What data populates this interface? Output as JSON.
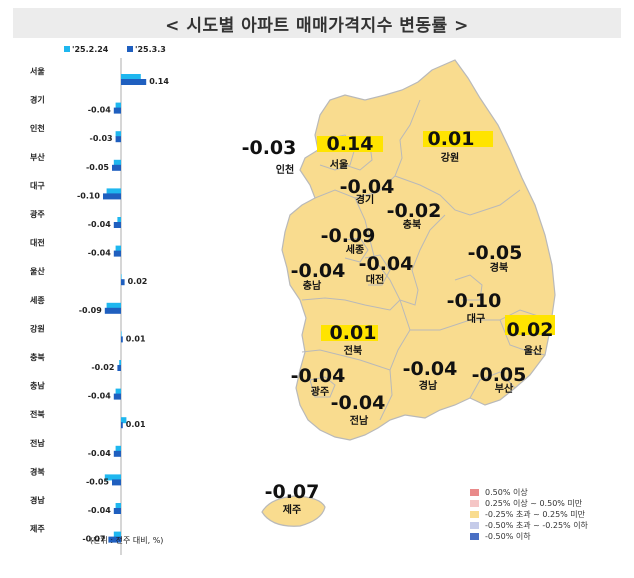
{
  "title": "< 시도별 아파트 매매가격지수 변동률 >",
  "unit_note": "(단위 : 전주 대비, %)",
  "colors": {
    "series_prev": "#1fb7ef",
    "series_curr": "#1f5fbf",
    "map_fill": "#f9dc8f",
    "map_stroke": "#b9b9b9",
    "highlight": "#ffe400"
  },
  "chart_data": {
    "type": "bar",
    "orientation": "horizontal",
    "categories": [
      "서울",
      "경기",
      "인천",
      "부산",
      "대구",
      "광주",
      "대전",
      "울산",
      "세종",
      "강원",
      "충북",
      "충남",
      "전북",
      "전남",
      "경북",
      "경남",
      "제주"
    ],
    "series": [
      {
        "name": "'25.2.24",
        "values": [
          0.11,
          -0.03,
          -0.03,
          -0.04,
          -0.08,
          -0.02,
          -0.03,
          0.0,
          -0.08,
          0.0,
          -0.01,
          -0.03,
          0.03,
          -0.03,
          -0.09,
          -0.03,
          -0.04
        ]
      },
      {
        "name": "'25.3.3",
        "values": [
          0.14,
          -0.04,
          -0.03,
          -0.05,
          -0.1,
          -0.04,
          -0.04,
          0.02,
          -0.09,
          0.01,
          -0.02,
          -0.04,
          0.01,
          -0.04,
          -0.05,
          -0.04,
          -0.07
        ]
      }
    ],
    "value_labels": [
      "0.14",
      "-0.04",
      "-0.03",
      "-0.05",
      "-0.10",
      "-0.04",
      "-0.04",
      "0.02",
      "-0.09",
      "0.01",
      "-0.02",
      "-0.04",
      "0.01",
      "-0.04",
      "-0.05",
      "-0.04",
      "-0.07"
    ]
  },
  "map": {
    "regions": [
      {
        "name": "인천",
        "value": "-0.03"
      },
      {
        "name": "서울",
        "value": "0.14"
      },
      {
        "name": "경기",
        "value": "-0.04"
      },
      {
        "name": "강원",
        "value": "0.01"
      },
      {
        "name": "세종",
        "value": "-0.09"
      },
      {
        "name": "충북",
        "value": "-0.02"
      },
      {
        "name": "충남",
        "value": "-0.04"
      },
      {
        "name": "대전",
        "value": "-0.04"
      },
      {
        "name": "경북",
        "value": "-0.05"
      },
      {
        "name": "대구",
        "value": "-0.10"
      },
      {
        "name": "전북",
        "value": "0.01"
      },
      {
        "name": "울산",
        "value": "0.02"
      },
      {
        "name": "광주",
        "value": "-0.04"
      },
      {
        "name": "경남",
        "value": "-0.04"
      },
      {
        "name": "부산",
        "value": "-0.05"
      },
      {
        "name": "전남",
        "value": "-0.04"
      },
      {
        "name": "제주",
        "value": "-0.07"
      }
    ],
    "highlighted": [
      "서울",
      "강원",
      "전북",
      "울산"
    ]
  },
  "legend": [
    {
      "label": "0.50% 이상",
      "color": "#e98a8a"
    },
    {
      "label": "0.25% 이상 ~ 0.50% 미만",
      "color": "#f5c6c6"
    },
    {
      "label": "-0.25% 초과 ~ 0.25% 미만",
      "color": "#f9dc8f"
    },
    {
      "label": "-0.50% 초과 ~ -0.25% 이하",
      "color": "#c5cbe9"
    },
    {
      "label": "-0.50% 이하",
      "color": "#4a6fc4"
    }
  ]
}
